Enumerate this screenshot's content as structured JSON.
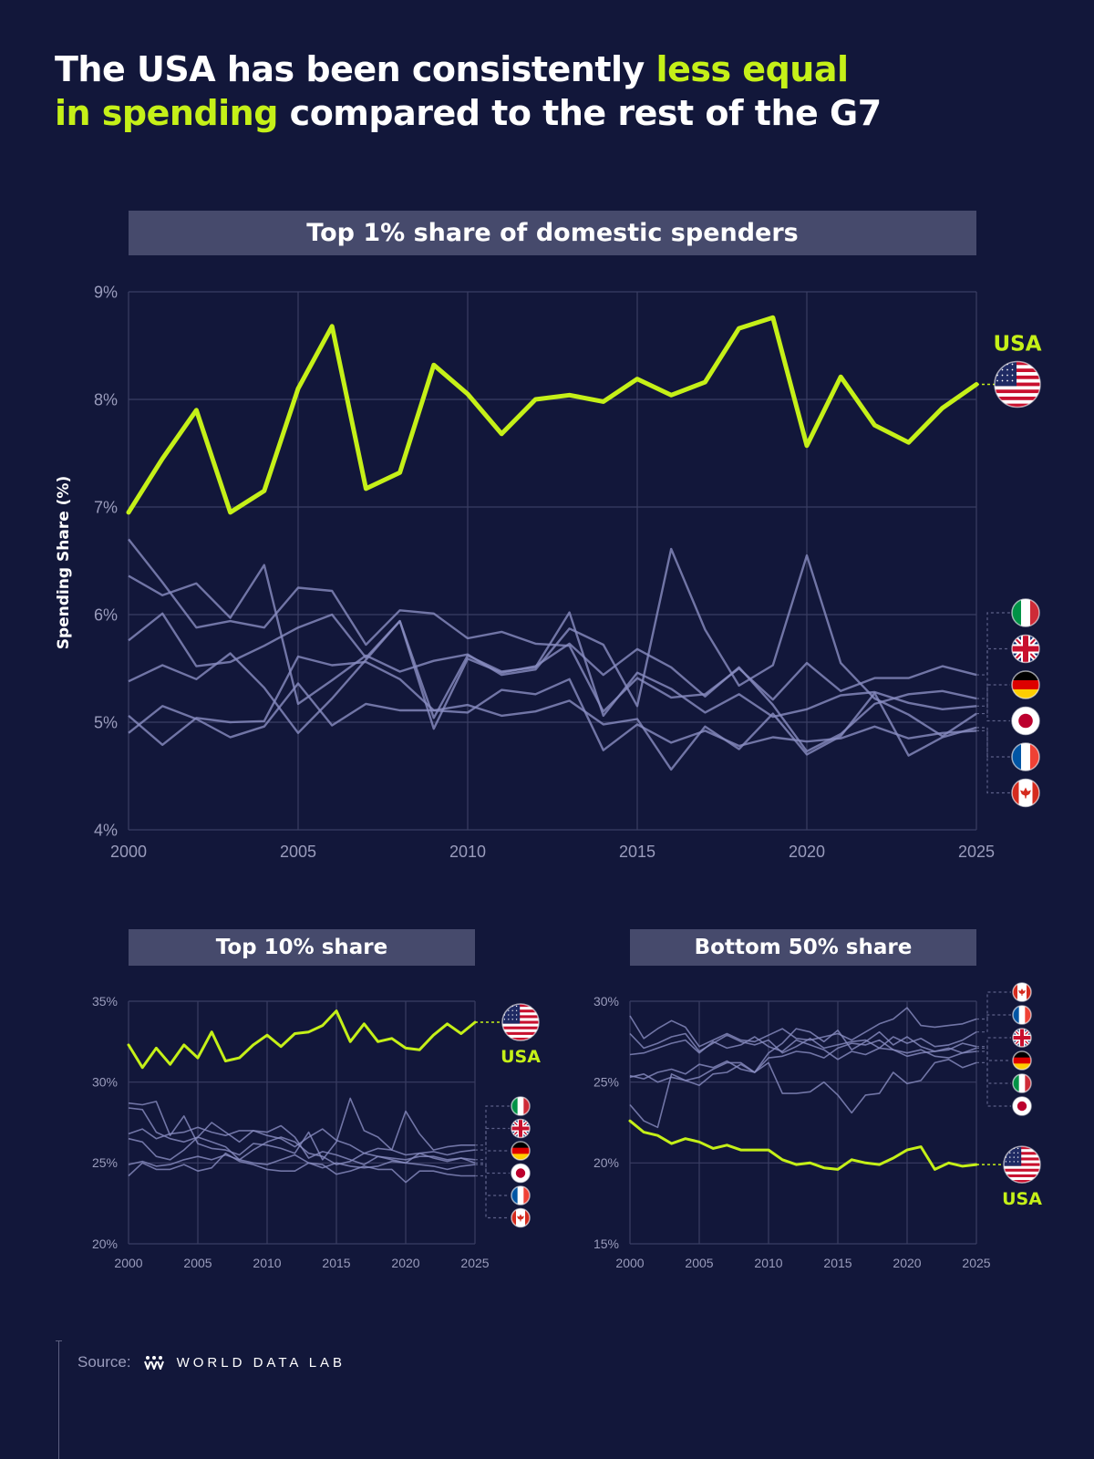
{
  "title": {
    "part1": "The USA has been consistently ",
    "highlight1": "less equal",
    "highlight2": "in spending",
    "part2": " compared to the rest of the G7"
  },
  "y_axis_label": "Spending Share (%)",
  "source": {
    "label": "Source:",
    "brand": "WORLD DATA LAB"
  },
  "colors": {
    "background": "#12173a",
    "usa": "#c5f018",
    "others": "#8a8dc2",
    "grid": "#3a3e63",
    "panel": "#464a6c"
  },
  "chart_data": [
    {
      "type": "line",
      "title": "Top 1% share of domestic spenders",
      "ylabel": "Spending Share (%)",
      "ylim": [
        4,
        9
      ],
      "xlim": [
        2000,
        2025
      ],
      "y_ticks": [
        "4%",
        "5%",
        "6%",
        "7%",
        "8%",
        "9%"
      ],
      "x_ticks": [
        "2000",
        "2005",
        "2010",
        "2015",
        "2020",
        "2025"
      ],
      "x": [
        2000,
        2001,
        2002,
        2003,
        2004,
        2005,
        2006,
        2007,
        2008,
        2009,
        2010,
        2011,
        2012,
        2013,
        2014,
        2015,
        2016,
        2017,
        2018,
        2019,
        2020,
        2021,
        2022,
        2023,
        2024,
        2025
      ],
      "series": [
        {
          "name": "USA",
          "flag": "us",
          "values": [
            6.95,
            7.45,
            7.9,
            6.95,
            7.15,
            8.1,
            8.68,
            7.17,
            7.32,
            8.32,
            8.05,
            7.68,
            8.0,
            8.04,
            7.98,
            8.19,
            8.04,
            8.16,
            8.66,
            8.76,
            7.57,
            8.21,
            7.76,
            7.6,
            7.92,
            8.14
          ]
        },
        {
          "name": "",
          "flag": "it",
          "values": [
            6.7,
            6.3,
            5.88,
            5.94,
            5.88,
            6.25,
            6.22,
            5.72,
            6.04,
            6.01,
            5.78,
            5.84,
            5.73,
            5.71,
            5.1,
            5.41,
            5.23,
            5.26,
            5.5,
            5.21,
            5.55,
            5.29,
            5.41,
            5.41,
            5.52,
            5.44
          ]
        },
        {
          "name": "",
          "flag": "gb",
          "values": [
            6.36,
            6.18,
            6.29,
            5.97,
            6.46,
            5.17,
            5.39,
            5.62,
            5.47,
            5.57,
            5.63,
            5.44,
            5.49,
            5.87,
            5.72,
            5.15,
            6.61,
            5.86,
            5.34,
            5.53,
            6.55,
            5.55,
            5.22,
            5.07,
            4.87,
            5.08
          ]
        },
        {
          "name": "",
          "flag": "de",
          "values": [
            5.76,
            6.01,
            5.52,
            5.56,
            5.71,
            5.88,
            6.0,
            5.6,
            5.94,
            5.04,
            5.62,
            5.47,
            5.51,
            6.02,
            5.06,
            5.46,
            5.31,
            5.09,
            5.26,
            5.05,
            5.12,
            5.25,
            5.28,
            5.18,
            5.12,
            5.15
          ]
        },
        {
          "name": "",
          "flag": "jp",
          "values": [
            5.38,
            5.53,
            5.4,
            5.64,
            5.32,
            4.9,
            5.22,
            5.58,
            5.94,
            4.94,
            5.59,
            5.46,
            5.52,
            5.73,
            5.44,
            5.68,
            5.51,
            5.24,
            5.51,
            5.16,
            4.73,
            4.89,
            5.17,
            5.26,
            5.29,
            5.22
          ]
        },
        {
          "name": "",
          "flag": "fr",
          "values": [
            5.06,
            4.79,
            5.04,
            5.0,
            5.01,
            5.61,
            5.53,
            5.56,
            5.4,
            5.11,
            5.16,
            5.06,
            5.1,
            5.2,
            4.98,
            5.03,
            4.56,
            4.96,
            4.75,
            5.08,
            4.7,
            4.87,
            5.27,
            4.69,
            4.86,
            4.95
          ]
        },
        {
          "name": "",
          "flag": "ca",
          "values": [
            4.9,
            5.15,
            5.03,
            4.86,
            4.96,
            5.36,
            4.97,
            5.17,
            5.11,
            5.11,
            5.09,
            5.3,
            5.26,
            5.4,
            4.74,
            4.98,
            4.81,
            4.92,
            4.78,
            4.86,
            4.82,
            4.85,
            4.96,
            4.85,
            4.9,
            4.92
          ]
        }
      ]
    },
    {
      "type": "line",
      "title": "Top 10% share",
      "ylim": [
        20,
        35
      ],
      "xlim": [
        2000,
        2025
      ],
      "y_ticks": [
        "20%",
        "25%",
        "30%",
        "35%"
      ],
      "x_ticks": [
        "2000",
        "2005",
        "2010",
        "2015",
        "2020",
        "2025"
      ],
      "x": [
        2000,
        2001,
        2002,
        2003,
        2004,
        2005,
        2006,
        2007,
        2008,
        2009,
        2010,
        2011,
        2012,
        2013,
        2014,
        2015,
        2016,
        2017,
        2018,
        2019,
        2020,
        2021,
        2022,
        2023,
        2024,
        2025
      ],
      "series": [
        {
          "name": "USA",
          "flag": "us",
          "values": [
            32.3,
            30.9,
            32.1,
            31.1,
            32.3,
            31.5,
            33.1,
            31.3,
            31.5,
            32.3,
            32.9,
            32.2,
            33.0,
            33.1,
            33.5,
            34.4,
            32.5,
            33.6,
            32.5,
            32.7,
            32.1,
            32.0,
            32.9,
            33.6,
            33.0,
            33.7
          ]
        },
        {
          "name": "",
          "flag": "it",
          "values": [
            28.7,
            28.6,
            28.8,
            26.7,
            27.9,
            26.2,
            25.9,
            25.8,
            25.5,
            26.2,
            26.1,
            25.9,
            25.6,
            26.9,
            25.2,
            26.3,
            29.0,
            27.0,
            26.6,
            25.8,
            28.2,
            26.8,
            25.8,
            26.0,
            26.1,
            26.1
          ]
        },
        {
          "name": "",
          "flag": "gb",
          "values": [
            28.4,
            28.3,
            26.9,
            26.5,
            26.3,
            26.6,
            27.5,
            26.9,
            26.3,
            27.0,
            26.7,
            26.5,
            26.0,
            26.6,
            27.1,
            26.4,
            26.1,
            25.6,
            25.9,
            25.8,
            25.5,
            25.6,
            25.7,
            25.5,
            25.7,
            25.8
          ]
        },
        {
          "name": "",
          "flag": "de",
          "values": [
            26.8,
            27.1,
            26.5,
            26.8,
            26.9,
            27.2,
            26.9,
            26.7,
            27.0,
            27.0,
            26.9,
            27.3,
            26.6,
            25.3,
            25.7,
            25.5,
            25.2,
            24.9,
            25.4,
            25.2,
            25.0,
            25.6,
            25.3,
            25.1,
            25.3,
            25.2
          ]
        },
        {
          "name": "",
          "flag": "jp",
          "values": [
            26.5,
            26.3,
            25.4,
            25.2,
            25.8,
            26.6,
            26.3,
            26.0,
            25.2,
            25.8,
            26.3,
            26.6,
            26.3,
            25.6,
            25.4,
            24.9,
            25.1,
            25.6,
            25.4,
            25.3,
            25.2,
            25.4,
            25.4,
            25.2,
            25.3,
            25.0
          ]
        },
        {
          "name": "",
          "flag": "fr",
          "values": [
            24.9,
            25.1,
            24.8,
            24.9,
            25.2,
            25.4,
            25.2,
            25.5,
            25.2,
            25.0,
            24.9,
            25.2,
            25.5,
            25.0,
            24.7,
            25.0,
            24.8,
            24.7,
            24.8,
            25.1,
            25.0,
            24.9,
            24.8,
            24.6,
            24.8,
            24.9
          ]
        },
        {
          "name": "",
          "flag": "ca",
          "values": [
            24.2,
            25.0,
            24.6,
            24.6,
            24.9,
            24.5,
            24.7,
            25.6,
            25.1,
            24.9,
            24.6,
            24.5,
            24.5,
            25.0,
            24.9,
            24.3,
            24.5,
            24.8,
            24.6,
            24.6,
            23.8,
            24.5,
            24.5,
            24.3,
            24.2,
            24.2
          ]
        }
      ]
    },
    {
      "type": "line",
      "title": "Bottom 50% share",
      "ylim": [
        15,
        30
      ],
      "xlim": [
        2000,
        2025
      ],
      "y_ticks": [
        "15%",
        "20%",
        "25%",
        "30%"
      ],
      "x_ticks": [
        "2000",
        "2005",
        "2010",
        "2015",
        "2020",
        "2025"
      ],
      "x": [
        2000,
        2001,
        2002,
        2003,
        2004,
        2005,
        2006,
        2007,
        2008,
        2009,
        2010,
        2011,
        2012,
        2013,
        2014,
        2015,
        2016,
        2017,
        2018,
        2019,
        2020,
        2021,
        2022,
        2023,
        2024,
        2025
      ],
      "series": [
        {
          "name": "USA",
          "flag": "us",
          "values": [
            22.6,
            21.9,
            21.7,
            21.2,
            21.5,
            21.3,
            20.9,
            21.1,
            20.8,
            20.8,
            20.8,
            20.2,
            19.9,
            20.0,
            19.7,
            19.6,
            20.2,
            20.0,
            19.9,
            20.3,
            20.8,
            21.0,
            19.6,
            20.0,
            19.8,
            19.9
          ]
        },
        {
          "name": "",
          "flag": "ca",
          "values": [
            29.1,
            27.7,
            28.3,
            28.8,
            28.4,
            27.2,
            27.6,
            28.0,
            27.6,
            27.5,
            27.9,
            28.3,
            27.7,
            27.6,
            27.8,
            28.0,
            27.6,
            28.1,
            28.6,
            28.9,
            29.6,
            28.5,
            28.4,
            28.5,
            28.6,
            28.9
          ]
        },
        {
          "name": "",
          "flag": "fr",
          "values": [
            28.0,
            27.1,
            27.4,
            27.8,
            28.0,
            26.9,
            27.4,
            27.9,
            27.5,
            27.3,
            27.6,
            26.8,
            27.2,
            27.7,
            27.1,
            27.3,
            27.5,
            27.6,
            27.1,
            27.8,
            27.4,
            27.7,
            27.2,
            27.3,
            27.6,
            28.1
          ]
        },
        {
          "name": "",
          "flag": "gb",
          "values": [
            26.7,
            26.8,
            27.1,
            27.4,
            27.6,
            26.8,
            27.5,
            27.1,
            27.3,
            27.8,
            27.2,
            26.9,
            27.6,
            27.3,
            27.0,
            26.4,
            26.9,
            26.7,
            27.1,
            27.0,
            26.6,
            26.8,
            26.9,
            27.1,
            26.8,
            27.1
          ]
        },
        {
          "name": "",
          "flag": "de",
          "values": [
            25.4,
            25.2,
            25.6,
            25.8,
            25.5,
            26.1,
            25.9,
            26.3,
            25.8,
            25.6,
            26.5,
            26.6,
            26.9,
            26.8,
            26.5,
            27.1,
            27.4,
            27.3,
            27.6,
            27.0,
            26.8,
            27.0,
            26.6,
            26.5,
            26.8,
            26.9
          ]
        },
        {
          "name": "",
          "flag": "it",
          "values": [
            25.3,
            25.5,
            25.0,
            25.3,
            25.1,
            24.8,
            25.5,
            25.6,
            26.1,
            25.6,
            26.2,
            24.3,
            24.3,
            24.4,
            25.0,
            24.2,
            23.1,
            24.2,
            24.3,
            25.6,
            24.9,
            25.1,
            26.2,
            26.4,
            25.9,
            26.2
          ]
        },
        {
          "name": "",
          "flag": "jp",
          "values": [
            23.6,
            22.6,
            22.2,
            25.5,
            25.1,
            25.3,
            25.8,
            26.2,
            26.2,
            25.6,
            26.8,
            27.4,
            28.3,
            28.1,
            27.5,
            28.2,
            27.0,
            27.5,
            28.1,
            27.3,
            27.8,
            27.2,
            26.9,
            27.0,
            27.4,
            27.2
          ]
        }
      ]
    }
  ]
}
